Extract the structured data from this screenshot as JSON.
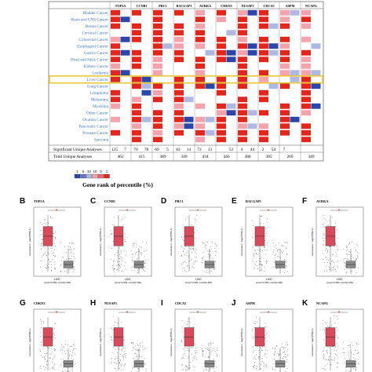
{
  "heatmap": {
    "genes": [
      "TOP2A",
      "CCNB1",
      "PRC1",
      "RACGAP1",
      "AURKA",
      "CDKN3",
      "NUSAP1",
      "CDCA5",
      "ASPM",
      "NCAPG"
    ],
    "cancers": [
      "Bladder Cancer",
      "Brain and CNS Cancer",
      "Breast Cancer",
      "Cervical Cancer",
      "Colorectal Cancer",
      "Esophageal Cancer",
      "Gastric Cancer",
      "Head and Neck Cancer",
      "Kidney Cancer",
      "Leukemia",
      "Liver Cancer",
      "Lung Cancer",
      "Lymphoma",
      "Melanoma",
      "Myeloma",
      "Other Cancer",
      "Ovarian Cancer",
      "Pancreatic Cancer",
      "Prostate Cancer",
      "Sarcoma"
    ],
    "highlighted": "Liver Cancer",
    "significant_label": "Significant Unique Analyses",
    "total_label": "Total Unique Analyses",
    "significant": [
      "125",
      "7",
      "70",
      "78",
      "69",
      "5",
      "82",
      "14",
      "72",
      "13",
      "",
      "52",
      "4",
      "44",
      "2",
      "54",
      "7"
    ],
    "total": [
      "462",
      "415",
      "389",
      "349",
      "434",
      "446",
      "388",
      "305",
      "269",
      "349"
    ],
    "legend_ticks": [
      "1",
      "5",
      "10",
      "10",
      "5",
      "1"
    ],
    "legend_title": "Gene rank of percentile (%)",
    "colors": {
      "up": "#e3261c",
      "up_light": "#f4a3ad",
      "down": "#2b46a8",
      "down_light": "#aeb8e0",
      "highlight": "#e8c832",
      "name_text": "#3a78c0"
    }
  },
  "panels_row1": [
    {
      "letter": "B",
      "gene": "TOP2A"
    },
    {
      "letter": "C",
      "gene": "CCNB1"
    },
    {
      "letter": "D",
      "gene": "PRC1"
    },
    {
      "letter": "E",
      "gene": "RACGAP1"
    },
    {
      "letter": "F",
      "gene": "AURKA"
    }
  ],
  "panels_row2": [
    {
      "letter": "G",
      "gene": "CDKN3"
    },
    {
      "letter": "H",
      "gene": "NUSAP1"
    },
    {
      "letter": "I",
      "gene": "CDCA5"
    },
    {
      "letter": "J",
      "gene": "ASPM"
    },
    {
      "letter": "K",
      "gene": "NCAPG"
    }
  ],
  "boxplot": {
    "ylabel": "Expression - log2(TPM+1)",
    "xlabel": "LIHC",
    "note": "(num(T)=369; num(N)=160)",
    "colors": {
      "tumor": "#d94a5c",
      "normal": "#8a8a8a"
    }
  }
}
